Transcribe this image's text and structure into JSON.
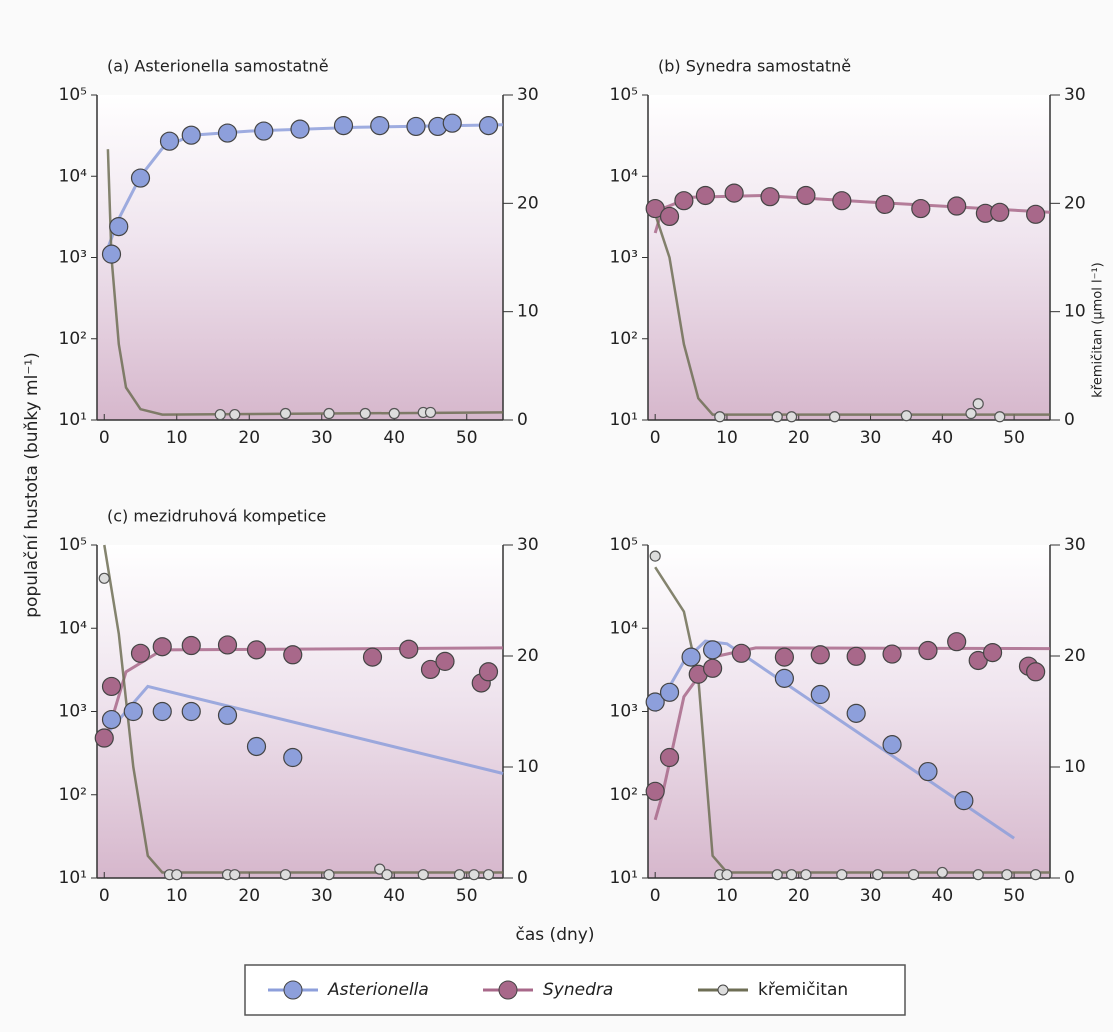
{
  "chart_data": [
    {
      "type": "line",
      "title": "(a) Asterionella samostatně",
      "ylog": true,
      "xlim": [
        -1,
        55
      ],
      "xticks": [
        0,
        10,
        20,
        30,
        40,
        50
      ],
      "ylim": [
        10,
        100000
      ],
      "yticks": [
        {
          "value": 10,
          "label": "10¹"
        },
        {
          "value": 100,
          "label": "10²"
        },
        {
          "value": 1000,
          "label": "10³"
        },
        {
          "value": 10000,
          "label": "10⁴"
        },
        {
          "value": 100000,
          "label": "10⁵"
        }
      ],
      "y2lim": [
        0,
        30
      ],
      "y2ticks": [
        0,
        10,
        20,
        30
      ],
      "series": [
        {
          "name": "Asterionella",
          "color": "#8d9fdb",
          "x": [
            1,
            2,
            5,
            9,
            12,
            17,
            22,
            27,
            33,
            38,
            43,
            46,
            48,
            53
          ],
          "values": [
            1100,
            2400,
            9500,
            27000,
            32000,
            34000,
            36000,
            38000,
            42000,
            42000,
            41000,
            41000,
            45000,
            42000
          ],
          "curve_x": [
            0,
            2,
            5,
            8,
            12,
            20,
            35,
            55
          ],
          "curve_values": [
            1000,
            3000,
            10000,
            22000,
            32000,
            36000,
            40000,
            43000
          ]
        },
        {
          "name": "křemičitan",
          "color": "#6e6e55",
          "axis": "y2",
          "x": [
            16,
            18,
            25,
            31,
            36,
            40,
            44,
            45
          ],
          "values": [
            0.5,
            0.5,
            0.6,
            0.6,
            0.6,
            0.6,
            0.7,
            0.7
          ],
          "curve_x": [
            0.5,
            1,
            2,
            3,
            5,
            8,
            55
          ],
          "curve_values": [
            25,
            15,
            7,
            3,
            1,
            0.5,
            0.7
          ]
        }
      ]
    },
    {
      "type": "line",
      "title": "(b) Synedra samostatně",
      "ylog": true,
      "y2label": "křemičitan (µmol l⁻¹)",
      "xlim": [
        -1,
        55
      ],
      "xticks": [
        0,
        10,
        20,
        30,
        40,
        50
      ],
      "ylim": [
        10,
        100000
      ],
      "yticks": [
        {
          "value": 10,
          "label": "10¹"
        },
        {
          "value": 100,
          "label": "10²"
        },
        {
          "value": 1000,
          "label": "10³"
        },
        {
          "value": 10000,
          "label": "10⁴"
        },
        {
          "value": 100000,
          "label": "10⁵"
        }
      ],
      "y2lim": [
        0,
        30
      ],
      "y2ticks": [
        0,
        10,
        20,
        30
      ],
      "series": [
        {
          "name": "Synedra",
          "color": "#a8688a",
          "x": [
            0,
            2,
            4,
            7,
            11,
            16,
            21,
            26,
            32,
            37,
            42,
            46,
            48,
            53
          ],
          "values": [
            4000,
            3200,
            5000,
            5800,
            6200,
            5600,
            5800,
            5000,
            4500,
            4000,
            4300,
            3500,
            3600,
            3400
          ],
          "curve_x": [
            0,
            1,
            5,
            15,
            30,
            55
          ],
          "curve_values": [
            2000,
            4000,
            5500,
            5800,
            4800,
            3600
          ]
        },
        {
          "name": "křemičitan",
          "color": "#6e6e55",
          "axis": "y2",
          "x": [
            9,
            17,
            19,
            25,
            35,
            44,
            45,
            48
          ],
          "values": [
            0.3,
            0.3,
            0.3,
            0.3,
            0.4,
            0.6,
            1.5,
            0.3
          ],
          "curve_x": [
            0,
            2,
            4,
            6,
            8,
            55
          ],
          "curve_values": [
            19,
            15,
            7,
            2,
            0.5,
            0.5
          ]
        }
      ]
    },
    {
      "type": "line",
      "title": "(c) mezidruhová kompetice",
      "ylog": true,
      "ylabel": "populační hustota (buňky ml⁻¹)",
      "xlabel": "čas (dny)",
      "xlim": [
        -1,
        55
      ],
      "xticks": [
        0,
        10,
        20,
        30,
        40,
        50
      ],
      "ylim": [
        10,
        100000
      ],
      "yticks": [
        {
          "value": 10,
          "label": "10¹"
        },
        {
          "value": 100,
          "label": "10²"
        },
        {
          "value": 1000,
          "label": "10³"
        },
        {
          "value": 10000,
          "label": "10⁴"
        },
        {
          "value": 100000,
          "label": "10⁵"
        }
      ],
      "y2lim": [
        0,
        30
      ],
      "y2ticks": [
        0,
        10,
        20,
        30
      ],
      "series": [
        {
          "name": "Asterionella",
          "color": "#8d9fdb",
          "x": [
            1,
            4,
            8,
            12,
            17,
            21,
            26
          ],
          "values": [
            800,
            1000,
            1000,
            1000,
            900,
            380,
            280
          ],
          "curve_x": [
            0,
            6,
            55
          ],
          "curve_values": [
            500,
            2000,
            180
          ]
        },
        {
          "name": "Synedra",
          "color": "#a8688a",
          "x": [
            0,
            1,
            5,
            8,
            12,
            17,
            21,
            26,
            37,
            42,
            45,
            47,
            52,
            53
          ],
          "values": [
            480,
            2000,
            5000,
            6000,
            6200,
            6300,
            5500,
            4800,
            4500,
            5600,
            3200,
            4000,
            2200,
            3000
          ],
          "curve_x": [
            0,
            3,
            8,
            55
          ],
          "curve_values": [
            400,
            3000,
            5500,
            5800
          ]
        },
        {
          "name": "křemičitan",
          "color": "#6e6e55",
          "axis": "y2",
          "x": [
            0,
            9,
            10,
            17,
            18,
            25,
            31,
            38,
            39,
            44,
            49,
            51,
            53
          ],
          "values": [
            27,
            0.3,
            0.3,
            0.3,
            0.3,
            0.3,
            0.3,
            0.8,
            0.3,
            0.3,
            0.3,
            0.3,
            0.3
          ],
          "curve_x": [
            0,
            2,
            4,
            6,
            8,
            55
          ],
          "curve_values": [
            30,
            22,
            10,
            2,
            0.5,
            0.5
          ]
        }
      ]
    },
    {
      "type": "line",
      "ylog": true,
      "xlim": [
        -1,
        55
      ],
      "xticks": [
        0,
        10,
        20,
        30,
        40,
        50
      ],
      "ylim": [
        10,
        100000
      ],
      "yticks": [
        {
          "value": 10,
          "label": "10¹"
        },
        {
          "value": 100,
          "label": "10²"
        },
        {
          "value": 1000,
          "label": "10³"
        },
        {
          "value": 10000,
          "label": "10⁴"
        },
        {
          "value": 100000,
          "label": "10⁵"
        }
      ],
      "y2lim": [
        0,
        30
      ],
      "y2ticks": [
        0,
        10,
        20,
        30
      ],
      "series": [
        {
          "name": "Asterionella",
          "color": "#8d9fdb",
          "x": [
            0,
            2,
            5,
            8,
            18,
            23,
            28,
            33,
            38,
            43
          ],
          "values": [
            1300,
            1700,
            4500,
            5500,
            2500,
            1600,
            950,
            400,
            190,
            85
          ],
          "curve_x": [
            0,
            4,
            7,
            10,
            50
          ],
          "curve_values": [
            1000,
            4000,
            7000,
            6500,
            30
          ]
        },
        {
          "name": "Synedra",
          "color": "#a8688a",
          "x": [
            0,
            2,
            6,
            8,
            12,
            18,
            23,
            28,
            33,
            38,
            42,
            45,
            47,
            52,
            53
          ],
          "values": [
            110,
            280,
            2800,
            3300,
            5000,
            4500,
            4800,
            4600,
            4900,
            5400,
            6900,
            4100,
            5100,
            3500,
            3000
          ],
          "curve_x": [
            0,
            1,
            4,
            8,
            14,
            55
          ],
          "curve_values": [
            50,
            100,
            1500,
            4500,
            5800,
            5700
          ]
        },
        {
          "name": "křemičitan",
          "color": "#6e6e55",
          "axis": "y2",
          "x": [
            0,
            9,
            10,
            17,
            19,
            21,
            26,
            31,
            36,
            40,
            45,
            49,
            53
          ],
          "values": [
            29,
            0.3,
            0.3,
            0.3,
            0.3,
            0.3,
            0.3,
            0.3,
            0.3,
            0.5,
            0.3,
            0.3,
            0.3
          ],
          "curve_x": [
            0,
            4,
            6,
            8,
            10,
            55
          ],
          "curve_values": [
            28,
            24,
            18,
            2,
            0.5,
            0.5
          ]
        }
      ]
    }
  ]
}
